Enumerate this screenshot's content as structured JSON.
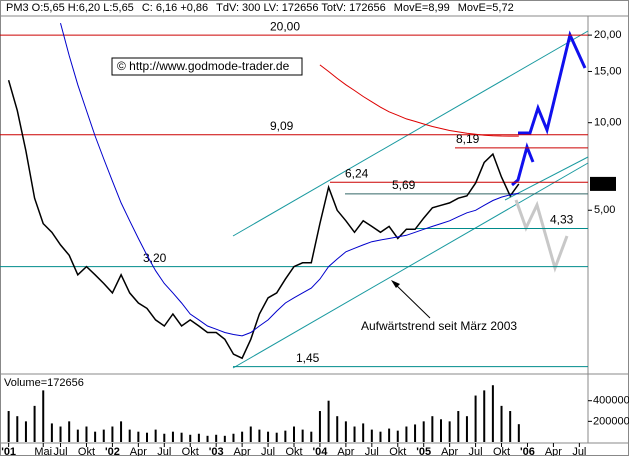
{
  "chart_data": [
    {
      "type": "line",
      "header": [
        {
          "text": "PM3 O:5,65 H:6,20 L:5,65",
          "color": "#000000"
        },
        {
          "text": "C: 6,16 +0,86",
          "color": "#dd0000"
        },
        {
          "text": "TdV: 300 LV: 172656 TotV: 172656",
          "color": "#000000"
        }
      ],
      "copyright": "© http://www.godmode-trader.de",
      "annotation": "Aufwärtstrend seit März 2003",
      "log_scale": true,
      "x": [
        "2001-01",
        "2001-02",
        "2001-03",
        "2001-04",
        "2001-05",
        "2001-06",
        "2001-07",
        "2001-08",
        "2001-09",
        "2001-10",
        "2001-11",
        "2001-12",
        "2002-01",
        "2002-02",
        "2002-03",
        "2002-04",
        "2002-05",
        "2002-06",
        "2002-07",
        "2002-08",
        "2002-09",
        "2002-10",
        "2002-11",
        "2002-12",
        "2003-01",
        "2003-02",
        "2003-03",
        "2003-04",
        "2003-05",
        "2003-06",
        "2003-07",
        "2003-08",
        "2003-09",
        "2003-10",
        "2003-11",
        "2003-12",
        "2004-01",
        "2004-02",
        "2004-03",
        "2004-04",
        "2004-05",
        "2004-06",
        "2004-07",
        "2004-08",
        "2004-09",
        "2004-10",
        "2004-11",
        "2004-12",
        "2005-01",
        "2005-02",
        "2005-03",
        "2005-04",
        "2005-05",
        "2005-06",
        "2005-07",
        "2005-08",
        "2005-09",
        "2005-10",
        "2005-11",
        "2005-12"
      ],
      "series": [
        {
          "color": "#000000",
          "values": [
            14,
            11,
            8,
            5.5,
            4.5,
            4.2,
            3.8,
            3.5,
            3.0,
            3.2,
            3.0,
            2.8,
            2.6,
            3.0,
            2.6,
            2.4,
            2.3,
            2.1,
            2.0,
            2.2,
            2.0,
            2.1,
            2.0,
            1.9,
            1.9,
            1.8,
            1.6,
            1.55,
            1.8,
            2.2,
            2.5,
            2.6,
            2.9,
            3.2,
            3.3,
            3.3,
            4.5,
            6.0,
            5.0,
            4.6,
            4.2,
            4.6,
            4.4,
            4.2,
            4.4,
            4.0,
            4.3,
            4.3,
            4.7,
            5.1,
            5.2,
            5.3,
            5.5,
            5.6,
            6.2,
            7.3,
            7.8,
            6.5,
            5.6,
            6.16
          ]
        },
        {
          "name": "MovE=8,99",
          "color": "#dd0000",
          "values": [
            null,
            null,
            null,
            null,
            null,
            null,
            null,
            null,
            null,
            null,
            null,
            null,
            null,
            null,
            null,
            null,
            null,
            null,
            null,
            null,
            null,
            null,
            null,
            null,
            null,
            null,
            null,
            null,
            null,
            null,
            null,
            null,
            null,
            null,
            null,
            null,
            15.8,
            15,
            14.2,
            13.5,
            12.9,
            12.3,
            11.8,
            11.3,
            10.9,
            10.6,
            10.3,
            10.1,
            9.9,
            9.7,
            9.55,
            9.4,
            9.3,
            9.2,
            9.12,
            9.06,
            9.02,
            9.0,
            8.99,
            8.99
          ]
        },
        {
          "name": "MovE=5,72",
          "color": "#0000cc",
          "values": [
            null,
            null,
            null,
            null,
            null,
            null,
            22,
            17,
            13.5,
            11,
            9,
            7.5,
            6.3,
            5.3,
            4.6,
            4.0,
            3.5,
            3.1,
            2.8,
            2.6,
            2.4,
            2.2,
            2.1,
            2.0,
            1.95,
            1.9,
            1.87,
            1.85,
            1.9,
            2.0,
            2.1,
            2.25,
            2.4,
            2.5,
            2.6,
            2.7,
            2.9,
            3.2,
            3.4,
            3.6,
            3.7,
            3.8,
            3.9,
            3.95,
            4.0,
            4.05,
            4.1,
            4.2,
            4.3,
            4.4,
            4.5,
            4.6,
            4.75,
            4.9,
            5.0,
            5.2,
            5.4,
            5.55,
            5.65,
            5.72
          ]
        }
      ],
      "levels": [
        {
          "value": 20,
          "label": "20,00",
          "color": "#cc0000"
        },
        {
          "value": 9.09,
          "label": "9,09",
          "color": "#cc0000"
        },
        {
          "value": 8.19,
          "label": "8,19",
          "color": "#cc0000"
        },
        {
          "value": 6.24,
          "label": "6,24",
          "color": "#cc0000"
        },
        {
          "value": 5.69,
          "label": "5,69",
          "color": "#336666"
        },
        {
          "value": 4.33,
          "label": "4,33",
          "color": "#008b8b"
        },
        {
          "value": 3.2,
          "label": "3,20",
          "color": "#008b8b"
        },
        {
          "value": 1.45,
          "label": "1,45",
          "color": "#008b8b"
        }
      ],
      "last_price": {
        "value": 6.16,
        "label": "6,16"
      },
      "ylim": [
        1.39,
        22.9
      ],
      "yticks": [
        {
          "value": 20,
          "label": "20,00"
        },
        {
          "value": 15,
          "label": "15,00"
        },
        {
          "value": 10,
          "label": "10,00"
        },
        {
          "value": 5,
          "label": "5,00"
        }
      ],
      "xlim": [
        "2000-12",
        "2006-08"
      ],
      "xticks": [
        {
          "value": "2001-01",
          "label": "'01"
        },
        {
          "value": "2001-05",
          "label": "Mai"
        },
        {
          "value": "2001-07",
          "label": "Jul"
        },
        {
          "value": "2001-10",
          "label": "Okt"
        },
        {
          "value": "2002-01",
          "label": "'02"
        },
        {
          "value": "2002-04",
          "label": "Apr"
        },
        {
          "value": "2002-07",
          "label": "Jul"
        },
        {
          "value": "2002-10",
          "label": "Okt"
        },
        {
          "value": "2003-01",
          "label": "'03"
        },
        {
          "value": "2003-04",
          "label": "Apr"
        },
        {
          "value": "2003-07",
          "label": "Jul"
        },
        {
          "value": "2003-10",
          "label": "Okt"
        },
        {
          "value": "2004-01",
          "label": "'04"
        },
        {
          "value": "2004-04",
          "label": "Apr"
        },
        {
          "value": "2004-07",
          "label": "Jul"
        },
        {
          "value": "2004-10",
          "label": "Okt"
        },
        {
          "value": "2005-01",
          "label": "'05"
        },
        {
          "value": "2005-04",
          "label": "Apr"
        },
        {
          "value": "2005-07",
          "label": "Jul"
        },
        {
          "value": "2005-10",
          "label": "Okt"
        },
        {
          "value": "2006-01",
          "label": "'06"
        },
        {
          "value": "2006-04",
          "label": "Apr"
        },
        {
          "value": "2006-07",
          "label": "Jul"
        }
      ]
    },
    {
      "type": "bar",
      "title": "Volume=172656",
      "color": "#000000",
      "x": [
        "2001-01",
        "2001-02",
        "2001-03",
        "2001-04",
        "2001-05",
        "2001-06",
        "2001-07",
        "2001-08",
        "2001-09",
        "2001-10",
        "2001-11",
        "2001-12",
        "2002-01",
        "2002-02",
        "2002-03",
        "2002-04",
        "2002-05",
        "2002-06",
        "2002-07",
        "2002-08",
        "2002-09",
        "2002-10",
        "2002-11",
        "2002-12",
        "2003-01",
        "2003-02",
        "2003-03",
        "2003-04",
        "2003-05",
        "2003-06",
        "2003-07",
        "2003-08",
        "2003-09",
        "2003-10",
        "2003-11",
        "2003-12",
        "2004-01",
        "2004-02",
        "2004-03",
        "2004-04",
        "2004-05",
        "2004-06",
        "2004-07",
        "2004-08",
        "2004-09",
        "2004-10",
        "2004-11",
        "2004-12",
        "2005-01",
        "2005-02",
        "2005-03",
        "2005-04",
        "2005-05",
        "2005-06",
        "2005-07",
        "2005-08",
        "2005-09",
        "2005-10",
        "2005-11",
        "2005-12"
      ],
      "values": [
        300000,
        250000,
        200000,
        350000,
        500000,
        180000,
        150000,
        200000,
        120000,
        150000,
        100000,
        120000,
        150000,
        200000,
        120000,
        100000,
        90000,
        120000,
        80000,
        100000,
        90000,
        70000,
        80000,
        60000,
        70000,
        60000,
        80000,
        100000,
        150000,
        120000,
        100000,
        90000,
        110000,
        150000,
        120000,
        100000,
        300000,
        400000,
        250000,
        200000,
        150000,
        180000,
        120000,
        100000,
        130000,
        110000,
        150000,
        170000,
        200000,
        250000,
        220000,
        200000,
        300000,
        250000,
        450000,
        500000,
        550000,
        350000,
        300000,
        172656
      ],
      "ylim": [
        0,
        620000
      ],
      "yticks": [
        200000,
        400000
      ]
    }
  ]
}
